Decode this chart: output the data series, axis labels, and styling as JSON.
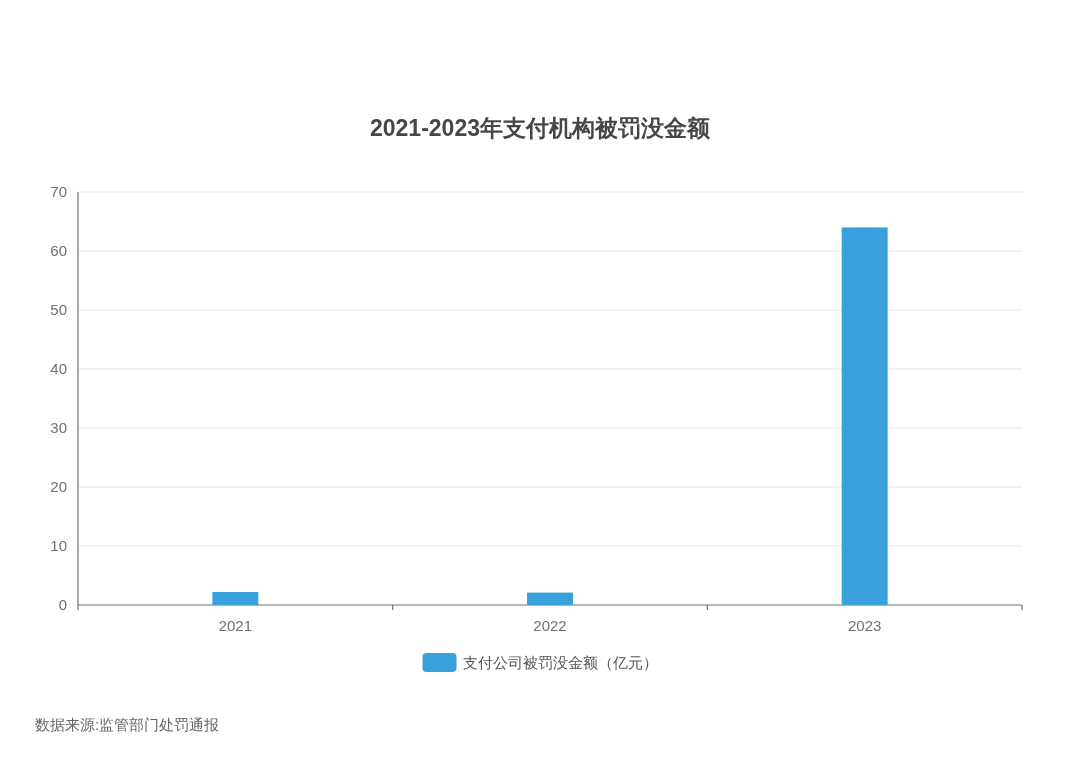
{
  "chart_data": {
    "type": "bar",
    "title": "2021-2023年支付机构被罚没金额",
    "categories": [
      "2021",
      "2022",
      "2023"
    ],
    "series": [
      {
        "name": "支付公司被罚没金额（亿元）",
        "color": "#38a1db",
        "values": [
          2.2,
          2.1,
          64
        ]
      }
    ],
    "ylim": [
      0,
      70
    ],
    "yticks": [
      0,
      10,
      20,
      30,
      40,
      50,
      60,
      70
    ],
    "grid": "y",
    "legend": "bottom",
    "annotations": [
      "数据来源:监管部门处罚通报"
    ]
  }
}
